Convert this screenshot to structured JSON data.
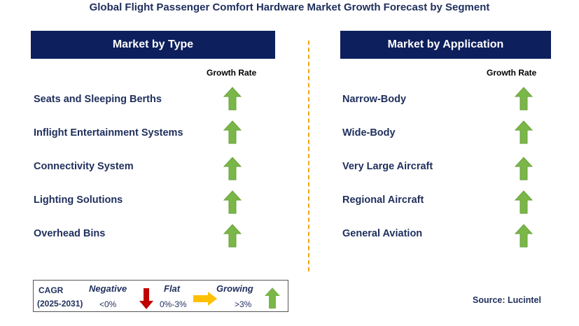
{
  "title": "Global Flight Passenger Comfort Hardware Market Growth Forecast by Segment",
  "left_panel": {
    "header": "Market by Type",
    "growth_label": "Growth Rate",
    "items": [
      {
        "label": "Seats and Sleeping Berths",
        "trend": "growing"
      },
      {
        "label": "Inflight Entertainment Systems",
        "trend": "growing"
      },
      {
        "label": "Connectivity System",
        "trend": "growing"
      },
      {
        "label": "Lighting Solutions",
        "trend": "growing"
      },
      {
        "label": "Overhead Bins",
        "trend": "growing"
      }
    ]
  },
  "right_panel": {
    "header": "Market by Application",
    "growth_label": "Growth Rate",
    "items": [
      {
        "label": "Narrow-Body",
        "trend": "growing"
      },
      {
        "label": "Wide-Body",
        "trend": "growing"
      },
      {
        "label": "Very Large Aircraft",
        "trend": "growing"
      },
      {
        "label": "Regional Aircraft",
        "trend": "growing"
      },
      {
        "label": "General Aviation",
        "trend": "growing"
      }
    ]
  },
  "legend": {
    "cagr_label": "CAGR",
    "period": "(2025-2031)",
    "negative": {
      "label": "Negative",
      "range": "<0%",
      "color": "#c00000",
      "icon": "down-arrow-icon"
    },
    "flat": {
      "label": "Flat",
      "range": "0%-3%",
      "color": "#ffc000",
      "icon": "right-arrow-icon"
    },
    "growing": {
      "label": "Growing",
      "range": ">3%",
      "color": "#7ab648",
      "icon": "up-arrow-icon"
    }
  },
  "source": "Source: Lucintel",
  "colors": {
    "header_bg": "#0d1f5c",
    "text_navy": "#1f2f5c",
    "divider": "#f0a818",
    "up_arrow": "#7ab648"
  }
}
